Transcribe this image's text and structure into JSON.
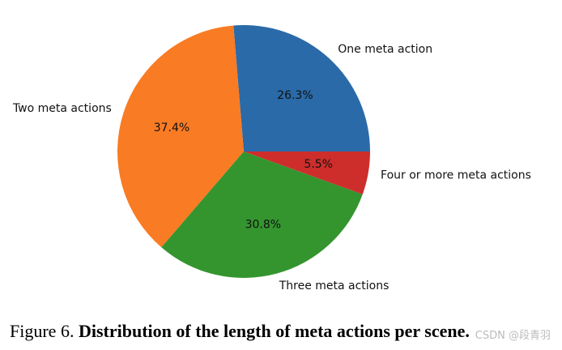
{
  "chart_data": {
    "type": "pie",
    "categories": [
      "One meta action",
      "Two meta actions",
      "Three meta actions",
      "Four or more meta actions"
    ],
    "values": [
      26.3,
      37.4,
      30.8,
      5.5
    ],
    "value_labels": [
      "26.3%",
      "37.4%",
      "30.8%",
      "5.5%"
    ],
    "colors": [
      "#2a6aa8",
      "#f97b23",
      "#34952f",
      "#cd2e2c"
    ]
  },
  "caption": {
    "label": "Figure 6.",
    "text": "Distribution of the length of meta actions per scene."
  },
  "watermark": "CSDN @段青羽"
}
